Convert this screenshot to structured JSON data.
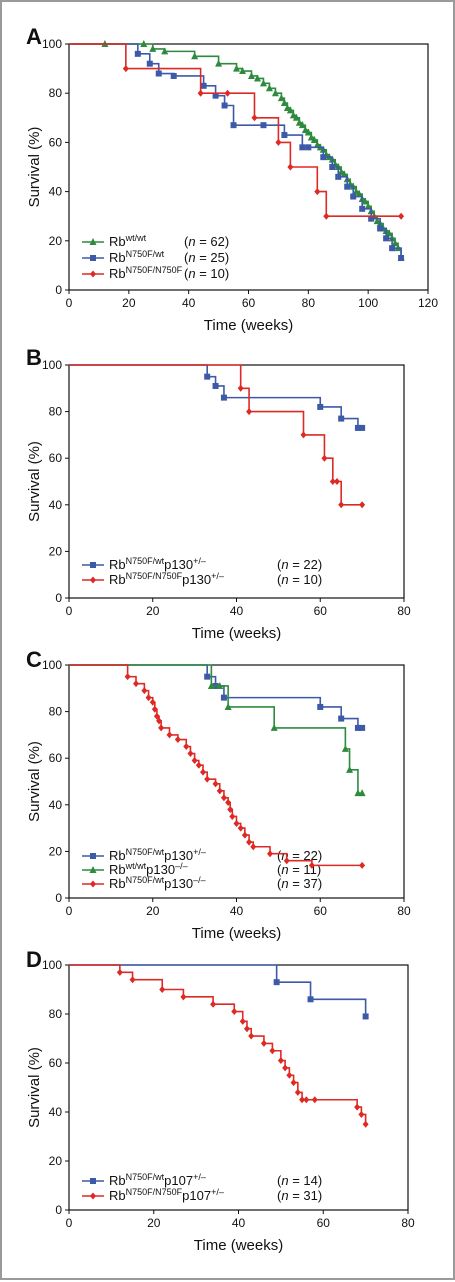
{
  "chart_data": [
    {
      "type": "line",
      "panel_label": "A",
      "xlabel": "Time (weeks)",
      "ylabel": "Survival (%)",
      "xlim": [
        0,
        120
      ],
      "ylim": [
        0,
        100
      ],
      "xticks": [
        0,
        20,
        40,
        60,
        80,
        100,
        120
      ],
      "yticks": [
        0,
        20,
        40,
        60,
        80,
        100
      ],
      "legend_placement": "bottom-left",
      "series": [
        {
          "name": "Rb",
          "sup": "wt/wt",
          "n_label": "(n = 62)",
          "color": "#2e8b3e",
          "marker": "triangle",
          "x": [
            0,
            12,
            25,
            28,
            32,
            42,
            50,
            56,
            58,
            61,
            63,
            65,
            67,
            69,
            71,
            72,
            73,
            74,
            75,
            76,
            77,
            78,
            79,
            80,
            81,
            82,
            83,
            84,
            85,
            86,
            87,
            88,
            89,
            90,
            91,
            92,
            93,
            94,
            95,
            96,
            97,
            98,
            99,
            100,
            101,
            102,
            103,
            104,
            105,
            106,
            107,
            108,
            109,
            110,
            111
          ],
          "y": [
            100,
            100,
            100,
            98,
            97,
            95,
            92,
            90,
            89,
            87,
            86,
            84,
            82,
            80,
            78,
            76,
            74,
            73,
            71,
            70,
            68,
            67,
            65,
            64,
            62,
            61,
            59,
            58,
            57,
            55,
            54,
            53,
            51,
            50,
            48,
            47,
            45,
            43,
            42,
            40,
            39,
            37,
            36,
            34,
            32,
            30,
            28,
            27,
            25,
            24,
            23,
            21,
            19,
            17,
            13
          ]
        },
        {
          "name": "Rb",
          "sup": "N750F/wt",
          "n_label": "(n = 25)",
          "color": "#3d5aa8",
          "marker": "square",
          "x": [
            0,
            23,
            27,
            30,
            35,
            45,
            49,
            52,
            55,
            65,
            72,
            78,
            80,
            85,
            88,
            90,
            93,
            95,
            98,
            101,
            104,
            106,
            108,
            111
          ],
          "y": [
            100,
            96,
            92,
            88,
            87,
            83,
            79,
            75,
            67,
            67,
            63,
            58,
            58,
            54,
            50,
            46,
            42,
            38,
            33,
            29,
            25,
            21,
            17,
            13
          ]
        },
        {
          "name": "Rb",
          "sup": "N750F/N750F",
          "n_label": "(n = 10)",
          "color": "#dd2a24",
          "marker": "diamond",
          "x": [
            0,
            19,
            44,
            53,
            62,
            70,
            74,
            83,
            86,
            111
          ],
          "y": [
            100,
            90,
            80,
            80,
            70,
            60,
            50,
            40,
            30,
            30
          ]
        }
      ]
    },
    {
      "type": "line",
      "panel_label": "B",
      "xlabel": "Time (weeks)",
      "ylabel": "Survival (%)",
      "xlim": [
        0,
        80
      ],
      "ylim": [
        0,
        100
      ],
      "xticks": [
        0,
        20,
        40,
        60,
        80
      ],
      "yticks": [
        0,
        20,
        40,
        60,
        80,
        100
      ],
      "legend_placement": "bottom-left",
      "series": [
        {
          "name": "Rb",
          "sup": "N750F/wt",
          "gene": "p130",
          "gene_sup": "+/–",
          "n_label": "(n = 22)",
          "color": "#3d5aa8",
          "marker": "square",
          "x": [
            0,
            33,
            35,
            37,
            60,
            65,
            69,
            70
          ],
          "y": [
            100,
            95,
            91,
            86,
            82,
            77,
            73,
            73
          ]
        },
        {
          "name": "Rb",
          "sup": "N750F/N750F",
          "gene": "p130",
          "gene_sup": "+/–",
          "n_label": "(n = 10)",
          "color": "#dd2a24",
          "marker": "diamond",
          "x": [
            0,
            41,
            43,
            56,
            61,
            63,
            64,
            65,
            70
          ],
          "y": [
            100,
            90,
            80,
            70,
            60,
            50,
            50,
            40,
            40
          ]
        }
      ]
    },
    {
      "type": "line",
      "panel_label": "C",
      "xlabel": "Time (weeks)",
      "ylabel": "Survival (%)",
      "xlim": [
        0,
        80
      ],
      "ylim": [
        0,
        100
      ],
      "xticks": [
        0,
        20,
        40,
        60,
        80
      ],
      "yticks": [
        0,
        20,
        40,
        60,
        80,
        100
      ],
      "legend_placement": "bottom-left",
      "series": [
        {
          "name": "Rb",
          "sup": "N750F/wt",
          "gene": "p130",
          "gene_sup": "+/–",
          "n_label": "(n = 22)",
          "color": "#3d5aa8",
          "marker": "square",
          "x": [
            0,
            33,
            35,
            37,
            60,
            65,
            69,
            70
          ],
          "y": [
            100,
            95,
            91,
            86,
            82,
            77,
            73,
            73
          ]
        },
        {
          "name": "Rb",
          "sup": "wt/wt",
          "gene": "p130",
          "gene_sup": "–/–",
          "n_label": "(n = 11)",
          "color": "#2e8b3e",
          "marker": "triangle",
          "x": [
            0,
            34,
            36,
            38,
            49,
            66,
            67,
            69,
            70
          ],
          "y": [
            100,
            91,
            91,
            82,
            73,
            64,
            55,
            45,
            45
          ]
        },
        {
          "name": "Rb",
          "sup": "N750F/wt",
          "gene": "p130",
          "gene_sup": "–/–",
          "n_label": "(n = 37)",
          "color": "#dd2a24",
          "marker": "diamond",
          "x": [
            0,
            14,
            16,
            18,
            19,
            20,
            20.5,
            21,
            21.5,
            22,
            24,
            26,
            28,
            29,
            30,
            31,
            32,
            33,
            35,
            36,
            37,
            38,
            38.5,
            39,
            40,
            41,
            42,
            43,
            44,
            48,
            52,
            58,
            70
          ],
          "y": [
            100,
            95,
            92,
            89,
            86,
            84,
            81,
            78,
            76,
            73,
            70,
            68,
            65,
            62,
            59,
            57,
            54,
            51,
            49,
            46,
            43,
            41,
            38,
            35,
            32,
            30,
            27,
            24,
            22,
            19,
            16,
            14,
            14
          ]
        }
      ]
    },
    {
      "type": "line",
      "panel_label": "D",
      "xlabel": "Time (weeks)",
      "ylabel": "Survival (%)",
      "xlim": [
        0,
        80
      ],
      "ylim": [
        0,
        100
      ],
      "xticks": [
        0,
        20,
        40,
        60,
        80
      ],
      "yticks": [
        0,
        20,
        40,
        60,
        80,
        100
      ],
      "legend_placement": "bottom-left",
      "series": [
        {
          "name": "Rb",
          "sup": "N750F/wt",
          "gene": "p107",
          "gene_sup": "+/–",
          "n_label": "(n = 14)",
          "color": "#3d5aa8",
          "marker": "square",
          "x": [
            0,
            49,
            57,
            70
          ],
          "y": [
            100,
            93,
            86,
            79
          ]
        },
        {
          "name": "Rb",
          "sup": "N750F/N750F",
          "gene": "p107",
          "gene_sup": "+/–",
          "n_label": "(n = 31)",
          "color": "#dd2a24",
          "marker": "diamond",
          "x": [
            0,
            12,
            15,
            22,
            27,
            34,
            39,
            41,
            42,
            43,
            46,
            48,
            50,
            51,
            52,
            53,
            54,
            55,
            56,
            58,
            68,
            69,
            70
          ],
          "y": [
            100,
            97,
            94,
            90,
            87,
            84,
            81,
            77,
            74,
            71,
            68,
            65,
            61,
            58,
            55,
            52,
            48,
            45,
            45,
            45,
            42,
            39,
            35
          ]
        }
      ]
    }
  ]
}
